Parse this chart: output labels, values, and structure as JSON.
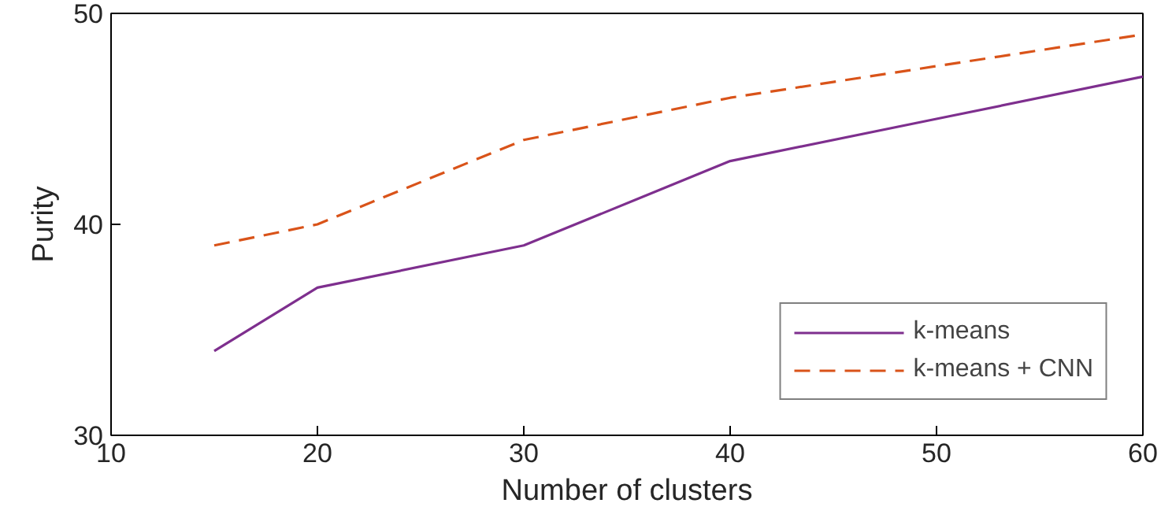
{
  "chart_data": {
    "type": "line",
    "xlabel": "Number of clusters",
    "ylabel": "Purity",
    "x": [
      15,
      20,
      30,
      40,
      50,
      60
    ],
    "series": [
      {
        "name": "k-means",
        "color": "#7e2f8e",
        "values": [
          34,
          37,
          39,
          43,
          45,
          47
        ],
        "line_style": "solid"
      },
      {
        "name": "k-means + CNN",
        "color": "#d95319",
        "values": [
          39,
          40,
          44,
          46,
          47.5,
          49
        ],
        "line_style": "dashed"
      }
    ],
    "xlim": [
      10,
      60
    ],
    "ylim": [
      30,
      50
    ],
    "xticks": [
      10,
      20,
      30,
      40,
      50,
      60
    ],
    "yticks": [
      30,
      40,
      50
    ],
    "grid": false,
    "legend": "bottom right",
    "marker": "none"
  }
}
